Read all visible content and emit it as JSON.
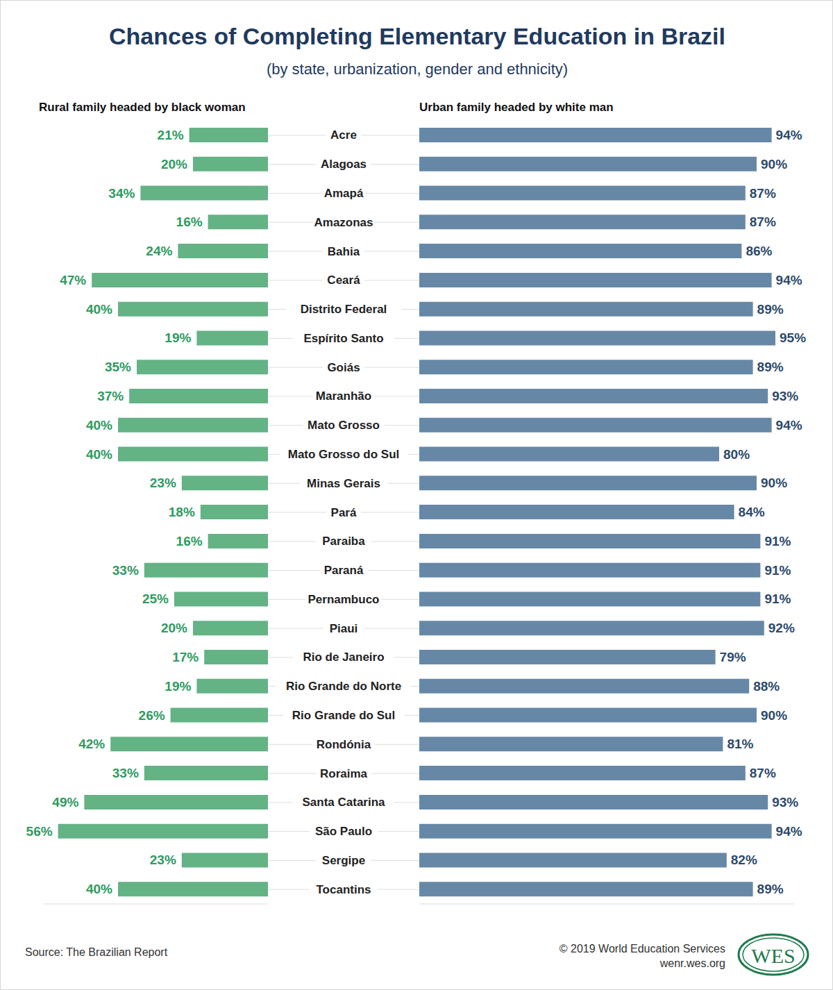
{
  "title": "Chances of Completing Elementary Education in Brazil",
  "subtitle": "(by state, urbanization, gender and ethnicity)",
  "source": "Source: The Brazilian Report",
  "copyright": "© 2019 World Education Services",
  "website": "wenr.wes.org",
  "logo": "WES",
  "chart_data": [
    {
      "type": "bar",
      "orientation": "horizontal",
      "title": "Rural family headed by black woman",
      "categories": [
        "Acre",
        "Alagoas",
        "Amapá",
        "Amazonas",
        "Bahia",
        "Ceará",
        "Distrito Federal",
        "Espírito Santo",
        "Goiás",
        "Maranhão",
        "Mato Grosso",
        "Mato Grosso do Sul",
        "Minas Gerais",
        "Pará",
        "Paraiba",
        "Paraná",
        "Pernambuco",
        "Piaui",
        "Rio de Janeiro",
        "Rio Grande do Norte",
        "Rio Grande do Sul",
        "Rondónia",
        "Roraima",
        "Santa Catarina",
        "São Paulo",
        "Sergipe",
        "Tocantins"
      ],
      "values": [
        21,
        20,
        34,
        16,
        24,
        47,
        40,
        19,
        35,
        37,
        40,
        40,
        23,
        18,
        16,
        33,
        25,
        20,
        17,
        19,
        26,
        42,
        33,
        49,
        56,
        23,
        40
      ],
      "value_labels": [
        "21%",
        "20%",
        "34%",
        "16%",
        "24%",
        "47%",
        "40%",
        "19%",
        "35%",
        "37%",
        "40%",
        "40%",
        "23%",
        "18%",
        "16%",
        "33%",
        "25%",
        "20%",
        "17%",
        "19%",
        "26%",
        "42%",
        "33%",
        "49%",
        "56%",
        "23%",
        "40%"
      ],
      "color": "#63b385",
      "xlim": [
        0,
        60
      ],
      "data_labels": true,
      "tick_labels": false,
      "grid": false
    },
    {
      "type": "bar",
      "orientation": "horizontal",
      "title": "Urban family headed by white man",
      "categories": [
        "Acre",
        "Alagoas",
        "Amapá",
        "Amazonas",
        "Bahia",
        "Ceará",
        "Distrito Federal",
        "Espírito Santo",
        "Goiás",
        "Maranhão",
        "Mato Grosso",
        "Mato Grosso do Sul",
        "Minas Gerais",
        "Pará",
        "Paraiba",
        "Paraná",
        "Pernambuco",
        "Piaui",
        "Rio de Janeiro",
        "Rio Grande do Norte",
        "Rio Grande do Sul",
        "Rondónia",
        "Roraima",
        "Santa Catarina",
        "São Paulo",
        "Sergipe",
        "Tocantins"
      ],
      "values": [
        94,
        90,
        87,
        87,
        86,
        94,
        89,
        95,
        89,
        93,
        94,
        80,
        90,
        84,
        91,
        91,
        91,
        92,
        79,
        88,
        90,
        81,
        87,
        93,
        94,
        82,
        89
      ],
      "value_labels": [
        "94%",
        "90%",
        "87%",
        "87%",
        "86%",
        "94%",
        "89%",
        "95%",
        "89%",
        "93%",
        "94%",
        "80%",
        "90%",
        "84%",
        "91%",
        "91%",
        "91%",
        "92%",
        "79%",
        "88%",
        "90%",
        "81%",
        "87%",
        "93%",
        "94%",
        "82%",
        "89%"
      ],
      "color": "#6688a6",
      "xlim": [
        0,
        100
      ],
      "data_labels": true,
      "tick_labels": "y",
      "grid": false
    }
  ]
}
